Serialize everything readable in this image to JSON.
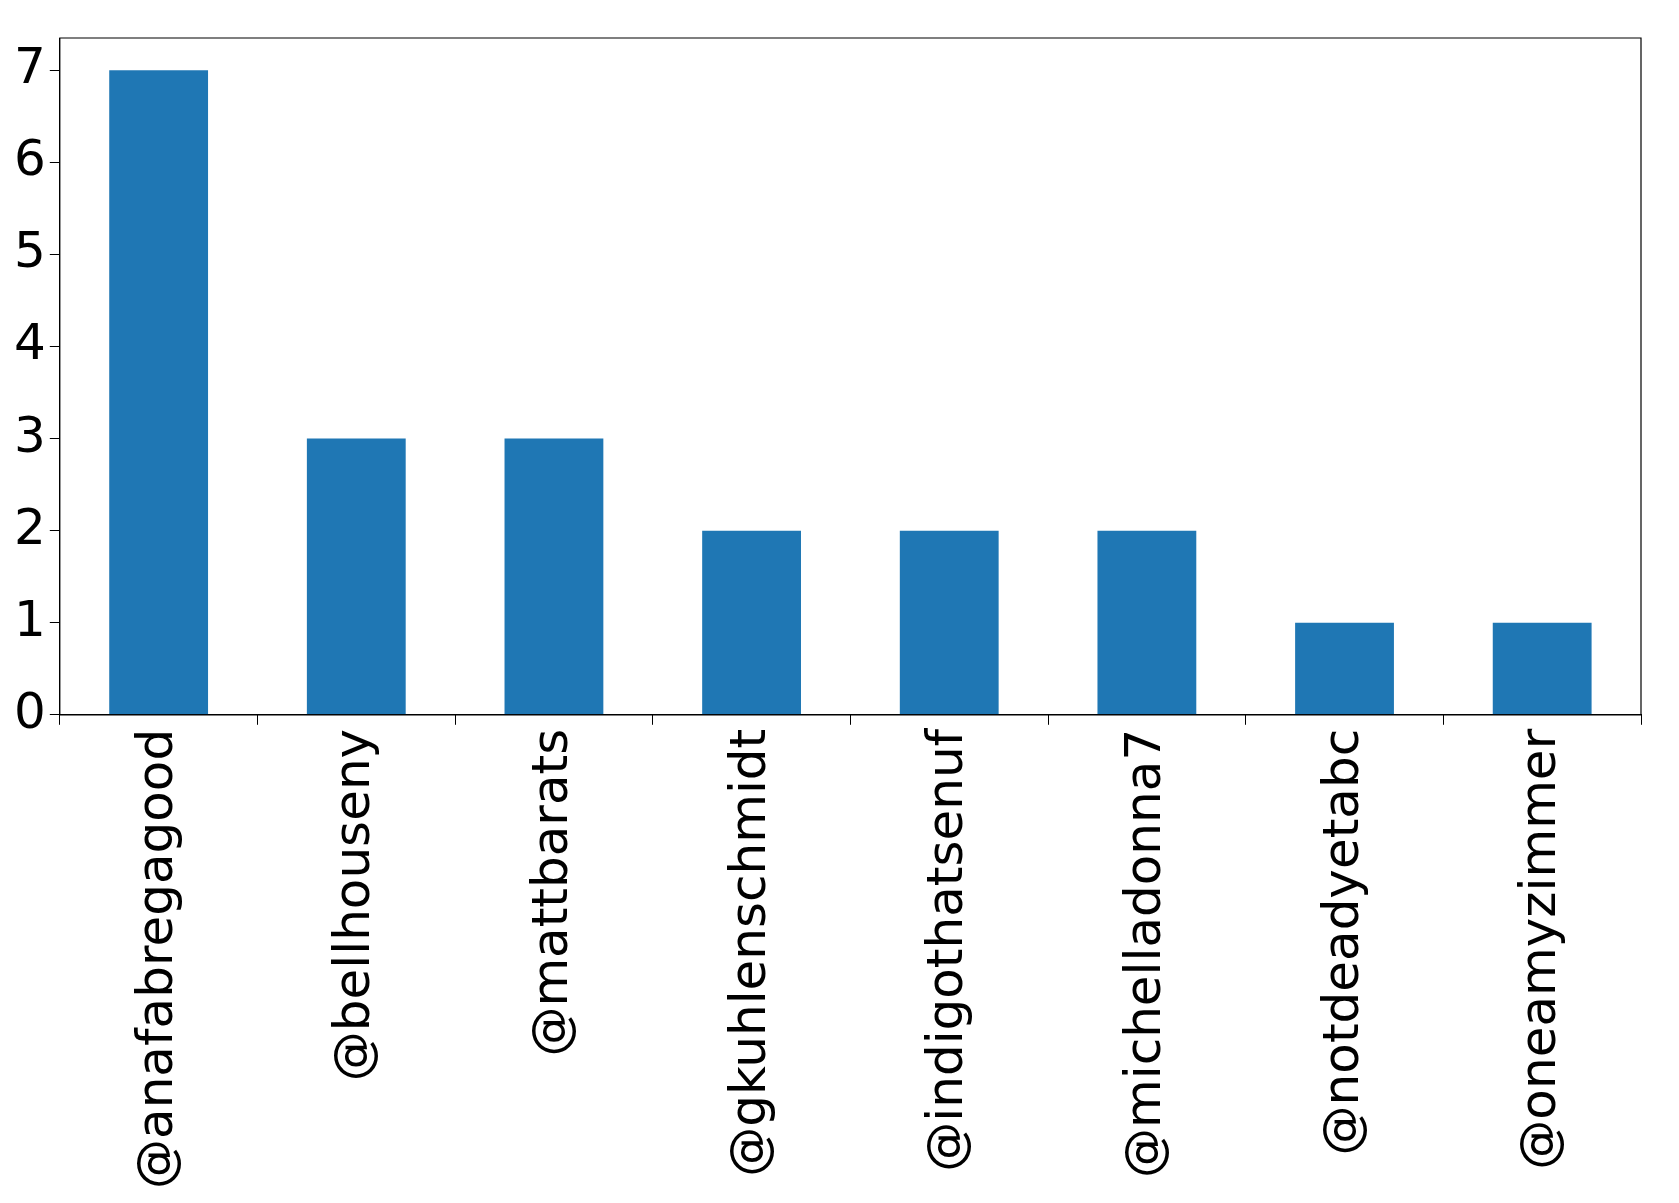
{
  "chart_data": {
    "type": "bar",
    "categories": [
      "@anafabregagood",
      "@bellhouseny",
      "@mattbarats",
      "@gkuhlenschmidt",
      "@indigothatsenuf",
      "@michelladonna7",
      "@notdeadyetabc",
      "@oneamyzimmer"
    ],
    "values": [
      7,
      3,
      3,
      2,
      2,
      2,
      1,
      1
    ],
    "color": "#1f77b4",
    "ylim": [
      0,
      7.35
    ],
    "yticks": [
      0,
      1,
      2,
      3,
      4,
      5,
      6,
      7
    ]
  }
}
